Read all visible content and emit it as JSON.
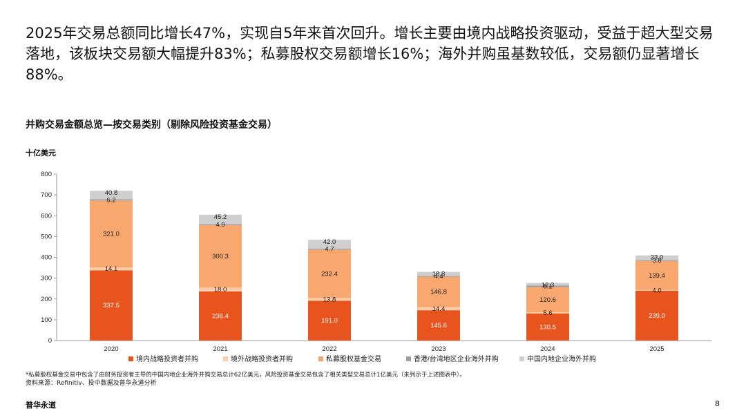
{
  "headline": "2025年交易总额同比增长47%，实现自5年来首次回升。增长主要由境内战略投资驱动，受益于超大型交易落地，该板块交易额大幅提升83%；私募股权交易额增长16%；海外并购虽基数较低，交易额仍显著增长88%。",
  "footnote": "*私募股权基金交易中包含了由财务投资者主导的中国内地企业海外并购交易总计62亿美元，风险投资基金交易包含了相关类型交易总计1亿美元（未列示于上述图表中）。",
  "source": "资料来源：Refinitiv、投中数据及普华永道分析",
  "brand": "普华永道",
  "page_number": "8",
  "colors": {
    "domestic_strategic": "#E8541E",
    "overseas_strategic": "#FFCBA8",
    "private_equity": "#F8A86E",
    "hk_tw_outbound": "#9E9E9E",
    "mainland_outbound": "#CFCFCF"
  },
  "chart_data": {
    "type": "bar",
    "stacked": true,
    "title": "并购交易金额总览—按交易类别（剔除风险投资基金交易）",
    "ylabel": "十亿美元",
    "xlabel": "",
    "ylim": [
      0,
      800
    ],
    "yticks": [
      0,
      100,
      200,
      300,
      400,
      500,
      600,
      700,
      800
    ],
    "grid": false,
    "legend_position": "bottom",
    "categories": [
      "2020",
      "2021",
      "2022",
      "2023",
      "2024",
      "2025"
    ],
    "series": [
      {
        "name": "境内战略投资者并购",
        "color": "#E8541E",
        "values": [
          337.5,
          236.4,
          191.0,
          145.6,
          130.5,
          239.0
        ]
      },
      {
        "name": "境外战略投资者并购",
        "color": "#FFCBA8",
        "values": [
          14.1,
          18.0,
          13.8,
          14.4,
          5.6,
          4.0
        ]
      },
      {
        "name": "私募股权基金交易",
        "color": "#F8A86E",
        "values": [
          321.0,
          300.3,
          232.4,
          146.8,
          120.6,
          139.4
        ]
      },
      {
        "name": "香港/台湾地区企业海外并购",
        "color": "#9E9E9E",
        "values": [
          6.2,
          4.9,
          4.7,
          4.4,
          8.1,
          3.8
        ]
      },
      {
        "name": "中国内地企业海外并购",
        "color": "#CFCFCF",
        "values": [
          40.8,
          45.2,
          42.0,
          18.8,
          12.3,
          23.0
        ]
      }
    ]
  }
}
